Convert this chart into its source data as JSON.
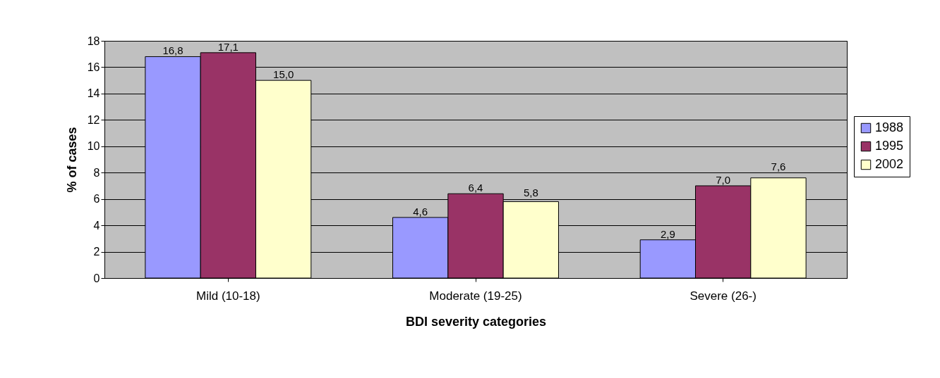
{
  "chart_data": {
    "type": "bar",
    "xlabel": "BDI severity categories",
    "ylabel": "% of cases",
    "categories": [
      "Mild (10-18)",
      "Moderate (19-25)",
      "Severe (26-)"
    ],
    "series": [
      {
        "name": "1988",
        "color": "#9999ff",
        "values": [
          16.8,
          4.6,
          2.9
        ],
        "value_labels": [
          "16,8",
          "4,6",
          "2,9"
        ]
      },
      {
        "name": "1995",
        "color": "#993366",
        "values": [
          17.1,
          6.4,
          7.0
        ],
        "value_labels": [
          "17,1",
          "6,4",
          "7,0"
        ]
      },
      {
        "name": "2002",
        "color": "#ffffcc",
        "values": [
          15.0,
          5.8,
          7.6
        ],
        "value_labels": [
          "15,0",
          "5,8",
          "7,6"
        ]
      }
    ],
    "ylim": [
      0,
      18
    ],
    "yticks": [
      0,
      2,
      4,
      6,
      8,
      10,
      12,
      14,
      16,
      18
    ],
    "grid": "y",
    "legend": "right"
  }
}
